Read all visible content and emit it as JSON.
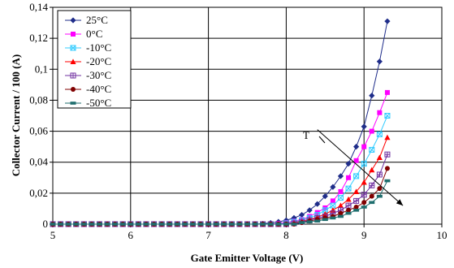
{
  "chart_data": {
    "type": "line",
    "title": "",
    "xlabel": "Gate Emitter Voltage (V)",
    "ylabel": "Collector Current / 100 (A)",
    "xlim": [
      5,
      10
    ],
    "ylim": [
      0,
      0.14
    ],
    "x_ticks": [
      5,
      6,
      7,
      8,
      9,
      10
    ],
    "x_tick_labels": [
      "5",
      "6",
      "7",
      "8",
      "9",
      "10"
    ],
    "y_ticks": [
      0,
      0.02,
      0.04,
      0.06,
      0.08,
      0.1,
      0.12,
      0.14
    ],
    "y_tick_labels": [
      "0",
      "0,02",
      "0,04",
      "0,06",
      "0,08",
      "0,1",
      "0,12",
      "0,14"
    ],
    "grid": true,
    "legend_position": "top-left",
    "annotation": {
      "text": "T",
      "arrow_from": [
        8.4,
        0.061
      ],
      "arrow_to": [
        9.5,
        0.012
      ]
    },
    "x": [
      5.0,
      5.1,
      5.2,
      5.3,
      5.4,
      5.5,
      5.6,
      5.7,
      5.8,
      5.9,
      6.0,
      6.1,
      6.2,
      6.3,
      6.4,
      6.5,
      6.6,
      6.7,
      6.8,
      6.9,
      7.0,
      7.1,
      7.2,
      7.3,
      7.4,
      7.5,
      7.6,
      7.7,
      7.8,
      7.9,
      8.0,
      8.1,
      8.2,
      8.3,
      8.4,
      8.5,
      8.6,
      8.7,
      8.8,
      8.9,
      9.0,
      9.1,
      9.2,
      9.3
    ],
    "series": [
      {
        "name": "25°C",
        "color": "#1f2d8a",
        "marker": "diamond",
        "values": [
          0,
          0,
          0,
          0,
          0,
          0,
          0,
          0,
          0,
          0,
          0,
          0,
          0,
          0,
          0,
          0,
          0,
          0,
          0,
          0,
          0,
          0,
          0,
          0,
          0,
          0,
          0,
          0.0003,
          0.0008,
          0.0015,
          0.0025,
          0.004,
          0.006,
          0.009,
          0.013,
          0.018,
          0.024,
          0.031,
          0.039,
          0.05,
          0.063,
          0.083,
          0.105,
          0.131
        ]
      },
      {
        "name": "0°C",
        "color": "#ff00ff",
        "marker": "square",
        "values": [
          0,
          0,
          0,
          0,
          0,
          0,
          0,
          0,
          0,
          0,
          0,
          0,
          0,
          0,
          0,
          0,
          0,
          0,
          0,
          0,
          0,
          0,
          0,
          0,
          0,
          0,
          0,
          0,
          0,
          0.0005,
          0.001,
          0.002,
          0.003,
          0.005,
          0.0075,
          0.0105,
          0.015,
          0.021,
          0.03,
          0.041,
          0.05,
          0.06,
          0.072,
          0.085
        ]
      },
      {
        "name": "-10°C",
        "color": "#33ccff",
        "marker": "boxx",
        "values": [
          0,
          0,
          0,
          0,
          0,
          0,
          0,
          0,
          0,
          0,
          0,
          0,
          0,
          0,
          0,
          0,
          0,
          0,
          0,
          0,
          0,
          0,
          0,
          0,
          0,
          0,
          0,
          0,
          0,
          0,
          0.0005,
          0.0015,
          0.0025,
          0.004,
          0.006,
          0.009,
          0.012,
          0.017,
          0.023,
          0.031,
          0.039,
          0.048,
          0.058,
          0.07
        ]
      },
      {
        "name": "-20°C",
        "color": "#ff0000",
        "marker": "triangle",
        "values": [
          0,
          0,
          0,
          0,
          0,
          0,
          0,
          0,
          0,
          0,
          0,
          0,
          0,
          0,
          0,
          0,
          0,
          0,
          0,
          0,
          0,
          0,
          0,
          0,
          0,
          0,
          0,
          0,
          0,
          0,
          0,
          0.001,
          0.002,
          0.003,
          0.0045,
          0.0065,
          0.009,
          0.012,
          0.016,
          0.021,
          0.027,
          0.035,
          0.043,
          0.056
        ]
      },
      {
        "name": "-30°C",
        "color": "#7030a0",
        "marker": "boxplus",
        "values": [
          0,
          0,
          0,
          0,
          0,
          0,
          0,
          0,
          0,
          0,
          0,
          0,
          0,
          0,
          0,
          0,
          0,
          0,
          0,
          0,
          0,
          0,
          0,
          0,
          0,
          0,
          0,
          0,
          0,
          0,
          0,
          0.0005,
          0.0015,
          0.0025,
          0.004,
          0.005,
          0.007,
          0.009,
          0.012,
          0.015,
          0.019,
          0.025,
          0.032,
          0.045
        ]
      },
      {
        "name": "-40°C",
        "color": "#800000",
        "marker": "circle",
        "values": [
          0,
          0,
          0,
          0,
          0,
          0,
          0,
          0,
          0,
          0,
          0,
          0,
          0,
          0,
          0,
          0,
          0,
          0,
          0,
          0,
          0,
          0,
          0,
          0,
          0,
          0,
          0,
          0,
          0,
          0,
          0,
          0,
          0.001,
          0.002,
          0.003,
          0.004,
          0.005,
          0.007,
          0.009,
          0.011,
          0.014,
          0.018,
          0.023,
          0.036
        ]
      },
      {
        "name": "-50°C",
        "color": "#1f6e6e",
        "marker": "bar",
        "values": [
          0,
          0,
          0,
          0,
          0,
          0,
          0,
          0,
          0,
          0,
          0,
          0,
          0,
          0,
          0,
          0,
          0,
          0,
          0,
          0,
          0,
          0,
          0,
          0,
          0,
          0,
          0,
          0,
          0,
          0,
          0,
          0,
          0.001,
          0.0015,
          0.002,
          0.003,
          0.004,
          0.005,
          0.007,
          0.009,
          0.011,
          0.014,
          0.018,
          0.028
        ]
      }
    ]
  }
}
